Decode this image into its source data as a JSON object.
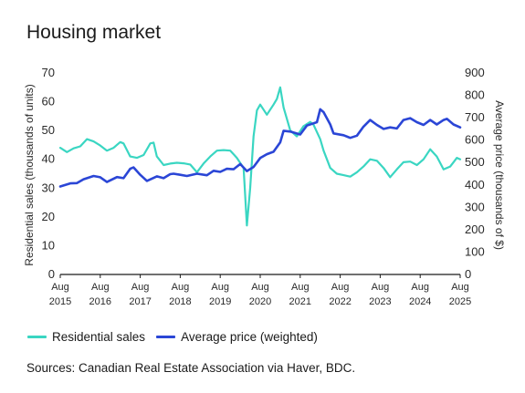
{
  "title": "Housing market",
  "source": "Sources: Canadian Real Estate Association via Haver, BDC.",
  "chart_data": {
    "type": "line",
    "title": "Housing market",
    "ylabel_left": "Residential sales (thousands of units)",
    "ylabel_right": "Average price (thousands of $)",
    "ylim_left": [
      0,
      70
    ],
    "yticks_left": [
      0,
      10,
      20,
      30,
      40,
      50,
      60,
      70
    ],
    "ylim_right": [
      0,
      900
    ],
    "yticks_right": [
      0,
      100,
      200,
      300,
      400,
      500,
      600,
      700,
      800,
      900
    ],
    "xticks": [
      {
        "month": "Aug",
        "year": "2015",
        "x": "2015-08"
      },
      {
        "month": "Aug",
        "year": "2016",
        "x": "2016-08"
      },
      {
        "month": "Aug",
        "year": "2017",
        "x": "2017-08"
      },
      {
        "month": "Aug",
        "year": "2018",
        "x": "2018-08"
      },
      {
        "month": "Aug",
        "year": "2019",
        "x": "2019-08"
      },
      {
        "month": "Aug",
        "year": "2020",
        "x": "2020-08"
      },
      {
        "month": "Aug",
        "year": "2021",
        "x": "2021-08"
      },
      {
        "month": "Aug",
        "year": "2022",
        "x": "2022-08"
      },
      {
        "month": "Aug",
        "year": "2023",
        "x": "2023-08"
      },
      {
        "month": "Aug",
        "year": "2024",
        "x": "2024-08"
      },
      {
        "month": "Aug",
        "year": "2025",
        "x": "2025-08"
      }
    ],
    "x_range": [
      "2015-08",
      "2025-08"
    ],
    "grid": false,
    "legend": "bottom",
    "series": [
      {
        "name": "Residential sales",
        "axis": "left",
        "color": "#3ad6c2",
        "points": [
          [
            "2015-08",
            44.0
          ],
          [
            "2015-10",
            42.5
          ],
          [
            "2015-12",
            43.8
          ],
          [
            "2016-02",
            44.5
          ],
          [
            "2016-04",
            47.0
          ],
          [
            "2016-06",
            46.2
          ],
          [
            "2016-08",
            44.8
          ],
          [
            "2016-10",
            43.0
          ],
          [
            "2016-12",
            44.0
          ],
          [
            "2017-02",
            46.0
          ],
          [
            "2017-03",
            45.5
          ],
          [
            "2017-05",
            41.0
          ],
          [
            "2017-07",
            40.5
          ],
          [
            "2017-09",
            41.5
          ],
          [
            "2017-11",
            45.5
          ],
          [
            "2017-12",
            45.8
          ],
          [
            "2018-01",
            41.0
          ],
          [
            "2018-03",
            38.0
          ],
          [
            "2018-05",
            38.5
          ],
          [
            "2018-07",
            38.8
          ],
          [
            "2018-09",
            38.6
          ],
          [
            "2018-11",
            38.2
          ],
          [
            "2019-01",
            35.5
          ],
          [
            "2019-03",
            38.5
          ],
          [
            "2019-05",
            41.0
          ],
          [
            "2019-07",
            43.0
          ],
          [
            "2019-09",
            43.2
          ],
          [
            "2019-11",
            43.0
          ],
          [
            "2020-01",
            40.5
          ],
          [
            "2020-03",
            37.0
          ],
          [
            "2020-04",
            17.0
          ],
          [
            "2020-05",
            30.0
          ],
          [
            "2020-06",
            48.0
          ],
          [
            "2020-07",
            57.0
          ],
          [
            "2020-08",
            59.0
          ],
          [
            "2020-10",
            55.5
          ],
          [
            "2020-12",
            59.0
          ],
          [
            "2021-01",
            61.0
          ],
          [
            "2021-02",
            65.0
          ],
          [
            "2021-03",
            58.0
          ],
          [
            "2021-05",
            50.0
          ],
          [
            "2021-07",
            48.0
          ],
          [
            "2021-09",
            51.5
          ],
          [
            "2021-11",
            53.0
          ],
          [
            "2021-12",
            52.0
          ],
          [
            "2022-02",
            47.0
          ],
          [
            "2022-03",
            43.0
          ],
          [
            "2022-05",
            37.0
          ],
          [
            "2022-07",
            35.0
          ],
          [
            "2022-09",
            34.5
          ],
          [
            "2022-11",
            34.0
          ],
          [
            "2023-01",
            35.5
          ],
          [
            "2023-03",
            37.5
          ],
          [
            "2023-05",
            40.0
          ],
          [
            "2023-07",
            39.5
          ],
          [
            "2023-09",
            37.0
          ],
          [
            "2023-11",
            33.8
          ],
          [
            "2024-01",
            36.5
          ],
          [
            "2024-03",
            39.0
          ],
          [
            "2024-05",
            39.2
          ],
          [
            "2024-07",
            38.0
          ],
          [
            "2024-09",
            40.0
          ],
          [
            "2024-11",
            43.5
          ],
          [
            "2025-01",
            41.0
          ],
          [
            "2025-03",
            36.5
          ],
          [
            "2025-05",
            37.5
          ],
          [
            "2025-06",
            39.0
          ],
          [
            "2025-07",
            40.5
          ],
          [
            "2025-08",
            40.0
          ]
        ]
      },
      {
        "name": "Average price (weighted)",
        "axis": "right",
        "color": "#2b46d6",
        "points": [
          [
            "2015-08",
            393
          ],
          [
            "2015-11",
            407
          ],
          [
            "2016-01",
            408
          ],
          [
            "2016-03",
            425
          ],
          [
            "2016-06",
            440
          ],
          [
            "2016-08",
            434
          ],
          [
            "2016-10",
            413
          ],
          [
            "2017-01",
            435
          ],
          [
            "2017-03",
            430
          ],
          [
            "2017-05",
            472
          ],
          [
            "2017-06",
            478
          ],
          [
            "2017-08",
            445
          ],
          [
            "2017-10",
            418
          ],
          [
            "2018-01",
            438
          ],
          [
            "2018-03",
            430
          ],
          [
            "2018-05",
            448
          ],
          [
            "2018-06",
            450
          ],
          [
            "2018-08",
            445
          ],
          [
            "2018-10",
            440
          ],
          [
            "2019-01",
            450
          ],
          [
            "2019-04",
            443
          ],
          [
            "2019-06",
            463
          ],
          [
            "2019-08",
            458
          ],
          [
            "2019-10",
            472
          ],
          [
            "2019-12",
            470
          ],
          [
            "2020-02",
            493
          ],
          [
            "2020-04",
            462
          ],
          [
            "2020-06",
            480
          ],
          [
            "2020-08",
            520
          ],
          [
            "2020-10",
            537
          ],
          [
            "2020-12",
            548
          ],
          [
            "2021-02",
            590
          ],
          [
            "2021-03",
            642
          ],
          [
            "2021-05",
            638
          ],
          [
            "2021-08",
            625
          ],
          [
            "2021-10",
            665
          ],
          [
            "2022-01",
            680
          ],
          [
            "2022-02",
            738
          ],
          [
            "2022-03",
            725
          ],
          [
            "2022-05",
            670
          ],
          [
            "2022-06",
            630
          ],
          [
            "2022-09",
            622
          ],
          [
            "2022-11",
            610
          ],
          [
            "2023-01",
            620
          ],
          [
            "2023-03",
            660
          ],
          [
            "2023-05",
            690
          ],
          [
            "2023-07",
            668
          ],
          [
            "2023-09",
            650
          ],
          [
            "2023-11",
            657
          ],
          [
            "2024-01",
            652
          ],
          [
            "2024-03",
            690
          ],
          [
            "2024-05",
            698
          ],
          [
            "2024-07",
            680
          ],
          [
            "2024-09",
            668
          ],
          [
            "2024-11",
            690
          ],
          [
            "2025-01",
            670
          ],
          [
            "2025-03",
            690
          ],
          [
            "2025-04",
            695
          ],
          [
            "2025-06",
            670
          ],
          [
            "2025-08",
            657
          ]
        ]
      }
    ]
  }
}
